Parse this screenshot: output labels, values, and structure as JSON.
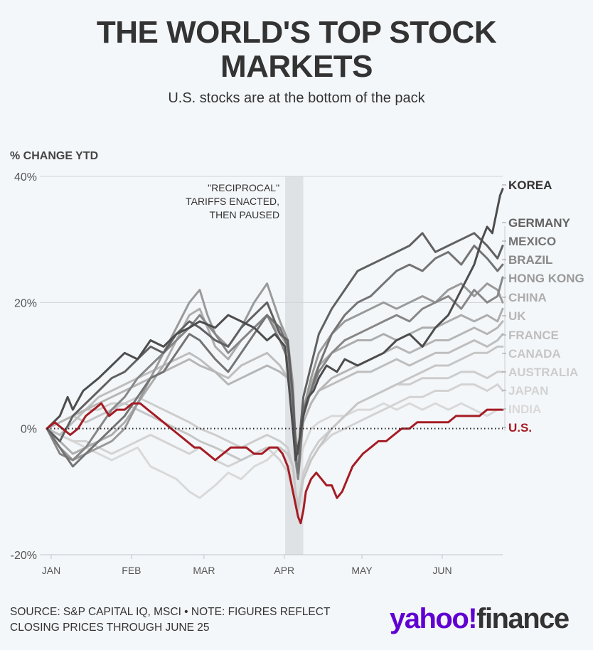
{
  "chart_data": {
    "type": "line",
    "title": "THE WORLD'S TOP STOCK MARKETS",
    "subtitle": "U.S. stocks are at the bottom of the pack",
    "ylabel": "% CHANGE YTD",
    "xlabel": "",
    "ylim": [
      -20,
      40
    ],
    "yticks": [
      40,
      20,
      0,
      -20
    ],
    "ytick_labels": [
      "40%",
      "20%",
      "0%",
      "-20%"
    ],
    "xlim": [
      0,
      176
    ],
    "xticks": [
      0,
      31,
      59,
      90,
      120,
      151
    ],
    "xtick_labels": [
      "JAN",
      "FEB",
      "MAR",
      "APR",
      "MAY",
      "JUN"
    ],
    "grid": "horizontal",
    "annotation": {
      "lines": [
        "\"RECIPROCAL\"",
        "TARIFFS ENACTED,",
        "THEN PAUSED"
      ],
      "x_start": 92,
      "x_end": 99
    },
    "series": [
      {
        "name": "KOREA",
        "color": "#4d4d4d",
        "x": [
          0,
          5,
          8,
          10,
          14,
          20,
          25,
          30,
          35,
          40,
          45,
          50,
          55,
          59,
          65,
          70,
          75,
          80,
          85,
          88,
          92,
          95,
          96,
          97,
          99,
          101,
          103,
          105,
          108,
          112,
          115,
          120,
          125,
          130,
          135,
          140,
          145,
          150,
          155,
          160,
          165,
          168,
          170,
          172,
          174,
          175,
          176
        ],
        "y": [
          0,
          2,
          5,
          3,
          6,
          8,
          10,
          12,
          11,
          14,
          13,
          15,
          16,
          17,
          16,
          18,
          17,
          16,
          14,
          15,
          13,
          0,
          -5,
          -3,
          2,
          5,
          6,
          8,
          10,
          9,
          11,
          10,
          11,
          12,
          14,
          15,
          13,
          16,
          18,
          22,
          26,
          30,
          32,
          31,
          35,
          37,
          38
        ]
      },
      {
        "name": "GERMANY",
        "color": "#616161",
        "x": [
          0,
          5,
          10,
          15,
          20,
          25,
          30,
          35,
          40,
          45,
          50,
          55,
          59,
          65,
          70,
          75,
          80,
          85,
          90,
          93,
          95,
          96,
          97,
          99,
          102,
          105,
          110,
          115,
          120,
          125,
          130,
          135,
          140,
          145,
          150,
          155,
          160,
          165,
          170,
          174,
          176
        ],
        "y": [
          0,
          -2,
          2,
          4,
          6,
          8,
          9,
          11,
          13,
          12,
          15,
          17,
          16,
          14,
          13,
          16,
          18,
          20,
          15,
          14,
          5,
          -2,
          -4,
          5,
          10,
          15,
          19,
          22,
          25,
          26,
          27,
          28,
          29,
          31,
          28,
          29,
          30,
          31,
          29,
          27,
          29
        ]
      },
      {
        "name": "MEXICO",
        "color": "#747474",
        "x": [
          0,
          5,
          10,
          15,
          20,
          25,
          30,
          35,
          40,
          45,
          50,
          55,
          59,
          65,
          70,
          75,
          80,
          85,
          90,
          93,
          95,
          96,
          97,
          99,
          102,
          105,
          110,
          115,
          120,
          125,
          130,
          135,
          140,
          145,
          150,
          155,
          160,
          165,
          170,
          174,
          176
        ],
        "y": [
          0,
          -3,
          -6,
          -4,
          -2,
          0,
          2,
          5,
          8,
          9,
          12,
          15,
          14,
          11,
          9,
          12,
          15,
          18,
          16,
          13,
          5,
          -4,
          -7,
          3,
          6,
          10,
          15,
          18,
          20,
          21,
          23,
          25,
          26,
          25,
          27,
          28,
          26,
          29,
          27,
          25,
          26
        ]
      },
      {
        "name": "BRAZIL",
        "color": "#878787",
        "x": [
          0,
          5,
          10,
          15,
          20,
          25,
          30,
          35,
          40,
          45,
          50,
          55,
          59,
          65,
          70,
          75,
          80,
          85,
          90,
          93,
          95,
          96,
          97,
          99,
          102,
          105,
          110,
          115,
          120,
          125,
          130,
          135,
          140,
          145,
          150,
          155,
          160,
          165,
          170,
          174,
          176
        ],
        "y": [
          0,
          -4,
          -5,
          -3,
          0,
          3,
          5,
          8,
          10,
          12,
          14,
          16,
          18,
          15,
          12,
          14,
          16,
          18,
          14,
          11,
          4,
          -5,
          -8,
          2,
          6,
          9,
          12,
          14,
          15,
          16,
          17,
          18,
          17,
          19,
          20,
          21,
          19,
          22,
          20,
          21,
          24
        ]
      },
      {
        "name": "HONG KONG",
        "color": "#9a9a9a",
        "x": [
          0,
          5,
          10,
          15,
          20,
          25,
          30,
          35,
          40,
          45,
          50,
          55,
          59,
          62,
          65,
          70,
          75,
          80,
          85,
          90,
          93,
          95,
          96,
          97,
          99,
          102,
          105,
          110,
          115,
          120,
          125,
          130,
          135,
          140,
          145,
          150,
          155,
          160,
          165,
          170,
          174,
          176
        ],
        "y": [
          0,
          -3,
          -5,
          -4,
          -3,
          -2,
          0,
          4,
          8,
          12,
          16,
          20,
          22,
          18,
          15,
          13,
          16,
          20,
          23,
          17,
          14,
          7,
          -2,
          -4,
          3,
          8,
          12,
          15,
          17,
          18,
          19,
          20,
          19,
          20,
          21,
          20,
          22,
          23,
          21,
          23,
          22,
          20
        ]
      },
      {
        "name": "CHINA",
        "color": "#adadad",
        "x": [
          0,
          5,
          10,
          15,
          20,
          25,
          30,
          35,
          40,
          45,
          50,
          55,
          59,
          62,
          65,
          70,
          75,
          80,
          85,
          90,
          93,
          95,
          96,
          97,
          99,
          102,
          105,
          110,
          115,
          120,
          125,
          130,
          135,
          140,
          145,
          150,
          155,
          160,
          165,
          170,
          174,
          176
        ],
        "y": [
          0,
          -2,
          -4,
          -3,
          -2,
          -1,
          1,
          4,
          7,
          10,
          14,
          18,
          19,
          16,
          13,
          11,
          14,
          16,
          18,
          15,
          13,
          6,
          -3,
          -5,
          2,
          7,
          10,
          12,
          13,
          14,
          14,
          15,
          14,
          15,
          16,
          16,
          17,
          18,
          17,
          18,
          17,
          19
        ]
      },
      {
        "name": "UK",
        "color": "#b6b6b6",
        "x": [
          0,
          5,
          10,
          15,
          20,
          25,
          30,
          35,
          40,
          45,
          50,
          55,
          59,
          65,
          70,
          75,
          80,
          85,
          90,
          93,
          95,
          96,
          97,
          99,
          102,
          105,
          110,
          115,
          120,
          125,
          130,
          135,
          140,
          145,
          150,
          155,
          160,
          165,
          170,
          174,
          176
        ],
        "y": [
          0,
          1,
          2,
          3,
          4,
          5,
          6,
          7,
          8,
          9,
          10,
          11,
          10,
          9,
          7,
          8,
          9,
          10,
          9,
          8,
          4,
          -1,
          -3,
          1,
          4,
          6,
          8,
          9,
          10,
          11,
          12,
          13,
          12,
          13,
          14,
          14,
          15,
          16,
          15,
          16,
          17
        ]
      },
      {
        "name": "FRANCE",
        "color": "#bebebe",
        "x": [
          0,
          5,
          10,
          15,
          20,
          25,
          30,
          35,
          40,
          45,
          50,
          55,
          59,
          65,
          70,
          75,
          80,
          85,
          90,
          93,
          95,
          96,
          97,
          99,
          102,
          105,
          110,
          115,
          120,
          125,
          130,
          135,
          140,
          145,
          150,
          155,
          160,
          165,
          170,
          174,
          176
        ],
        "y": [
          0,
          -1,
          1,
          3,
          5,
          6,
          7,
          8,
          9,
          10,
          11,
          12,
          11,
          9,
          8,
          10,
          11,
          12,
          10,
          8,
          3,
          -2,
          -4,
          1,
          4,
          6,
          7,
          8,
          9,
          9,
          10,
          11,
          10,
          11,
          12,
          12,
          13,
          14,
          13,
          14,
          15
        ]
      },
      {
        "name": "CANADA",
        "color": "#c6c6c6",
        "x": [
          0,
          5,
          10,
          15,
          20,
          25,
          30,
          35,
          40,
          45,
          50,
          55,
          59,
          65,
          70,
          75,
          80,
          85,
          90,
          93,
          95,
          96,
          97,
          99,
          102,
          105,
          110,
          115,
          120,
          125,
          130,
          135,
          140,
          145,
          150,
          155,
          160,
          165,
          170,
          174,
          176
        ],
        "y": [
          0,
          1,
          2,
          1,
          2,
          3,
          4,
          3,
          2,
          1,
          0,
          -1,
          -2,
          -3,
          -4,
          -5,
          -4,
          -3,
          -3,
          -4,
          -6,
          -10,
          -13,
          -8,
          -5,
          -3,
          0,
          2,
          4,
          5,
          6,
          7,
          8,
          9,
          10,
          10,
          11,
          12,
          12,
          13,
          13
        ]
      },
      {
        "name": "AUSTRALIA",
        "color": "#cdcdcd",
        "x": [
          0,
          5,
          10,
          15,
          20,
          25,
          30,
          35,
          40,
          45,
          50,
          55,
          59,
          65,
          70,
          75,
          80,
          85,
          90,
          93,
          95,
          96,
          97,
          99,
          102,
          105,
          110,
          115,
          120,
          125,
          130,
          135,
          140,
          145,
          150,
          155,
          160,
          165,
          170,
          174,
          176
        ],
        "y": [
          0,
          1,
          2,
          3,
          3,
          4,
          4,
          5,
          4,
          3,
          2,
          1,
          0,
          -1,
          -2,
          -3,
          -2,
          -1,
          -2,
          -3,
          -6,
          -10,
          -12,
          -7,
          -4,
          -2,
          0,
          2,
          4,
          5,
          6,
          7,
          7,
          8,
          8,
          8,
          9,
          9,
          8,
          9,
          9
        ]
      },
      {
        "name": "JAPAN",
        "color": "#d3d3d3",
        "x": [
          0,
          5,
          10,
          15,
          20,
          25,
          30,
          35,
          40,
          45,
          50,
          55,
          59,
          65,
          70,
          75,
          80,
          85,
          90,
          93,
          95,
          96,
          97,
          99,
          102,
          105,
          110,
          115,
          120,
          125,
          130,
          135,
          140,
          145,
          150,
          155,
          160,
          165,
          170,
          174,
          176
        ],
        "y": [
          0,
          -1,
          -2,
          -2,
          -3,
          -4,
          -3,
          -2,
          -1,
          -2,
          -3,
          -4,
          -3,
          -5,
          -6,
          -5,
          -4,
          -3,
          -5,
          -7,
          -10,
          -12,
          -13,
          -8,
          -5,
          -3,
          -1,
          0,
          1,
          2,
          3,
          4,
          5,
          5,
          6,
          6,
          7,
          7,
          6,
          7,
          6
        ]
      },
      {
        "name": "INDIA",
        "color": "#d9d9d9",
        "x": [
          0,
          5,
          10,
          15,
          20,
          25,
          30,
          35,
          40,
          45,
          50,
          55,
          59,
          62,
          65,
          70,
          75,
          80,
          85,
          90,
          93,
          95,
          96,
          97,
          99,
          102,
          105,
          110,
          115,
          120,
          125,
          130,
          135,
          140,
          145,
          150,
          155,
          160,
          165,
          170,
          174,
          176
        ],
        "y": [
          0,
          -1,
          -2,
          -3,
          -4,
          -5,
          -4,
          -3,
          -6,
          -7,
          -8,
          -10,
          -11,
          -10,
          -9,
          -7,
          -8,
          -6,
          -5,
          -3,
          -4,
          -6,
          -8,
          -7,
          -3,
          0,
          1,
          2,
          2,
          3,
          3,
          4,
          3,
          4,
          3,
          4,
          3,
          4,
          3,
          2,
          3,
          3
        ]
      },
      {
        "name": "U.S.",
        "color": "#a51c24",
        "x": [
          0,
          3,
          6,
          9,
          12,
          15,
          18,
          21,
          24,
          27,
          30,
          33,
          36,
          39,
          42,
          45,
          48,
          51,
          54,
          57,
          59,
          62,
          65,
          68,
          71,
          74,
          77,
          80,
          83,
          86,
          89,
          91,
          93,
          94,
          95,
          96,
          97,
          98,
          99,
          100,
          102,
          104,
          106,
          108,
          110,
          112,
          114,
          116,
          118,
          120,
          122,
          125,
          128,
          131,
          134,
          137,
          140,
          143,
          146,
          149,
          152,
          155,
          158,
          161,
          164,
          167,
          170,
          172,
          174,
          176
        ],
        "y": [
          0,
          1,
          0,
          -1,
          0,
          2,
          3,
          4,
          2,
          3,
          3,
          4,
          4,
          3,
          2,
          1,
          0,
          -1,
          -2,
          -3,
          -3,
          -4,
          -5,
          -4,
          -3,
          -3,
          -3,
          -4,
          -4,
          -3,
          -3,
          -4,
          -6,
          -8,
          -10,
          -12,
          -14,
          -15,
          -13,
          -10,
          -8,
          -7,
          -8,
          -9,
          -9,
          -11,
          -10,
          -8,
          -6,
          -5,
          -4,
          -3,
          -2,
          -2,
          -1,
          0,
          0,
          1,
          1,
          1,
          1,
          1,
          2,
          2,
          2,
          2,
          3,
          3,
          3,
          3
        ]
      }
    ],
    "series_order_in_legend": [
      "KOREA",
      "GERMANY",
      "MEXICO",
      "BRAZIL",
      "HONG KONG",
      "CHINA",
      "UK",
      "FRANCE",
      "CANADA",
      "AUSTRALIA",
      "JAPAN",
      "INDIA",
      "U.S."
    ]
  },
  "footer": {
    "source_line1": "SOURCE: S&P CAPITAL IQ, MSCI • NOTE: FIGURES REFLECT",
    "source_line2": "CLOSING PRICES THROUGH JUNE 25",
    "logo_part1": "yahoo",
    "logo_mark": "!",
    "logo_part2": "finance",
    "logo_color": "#6001d2"
  }
}
